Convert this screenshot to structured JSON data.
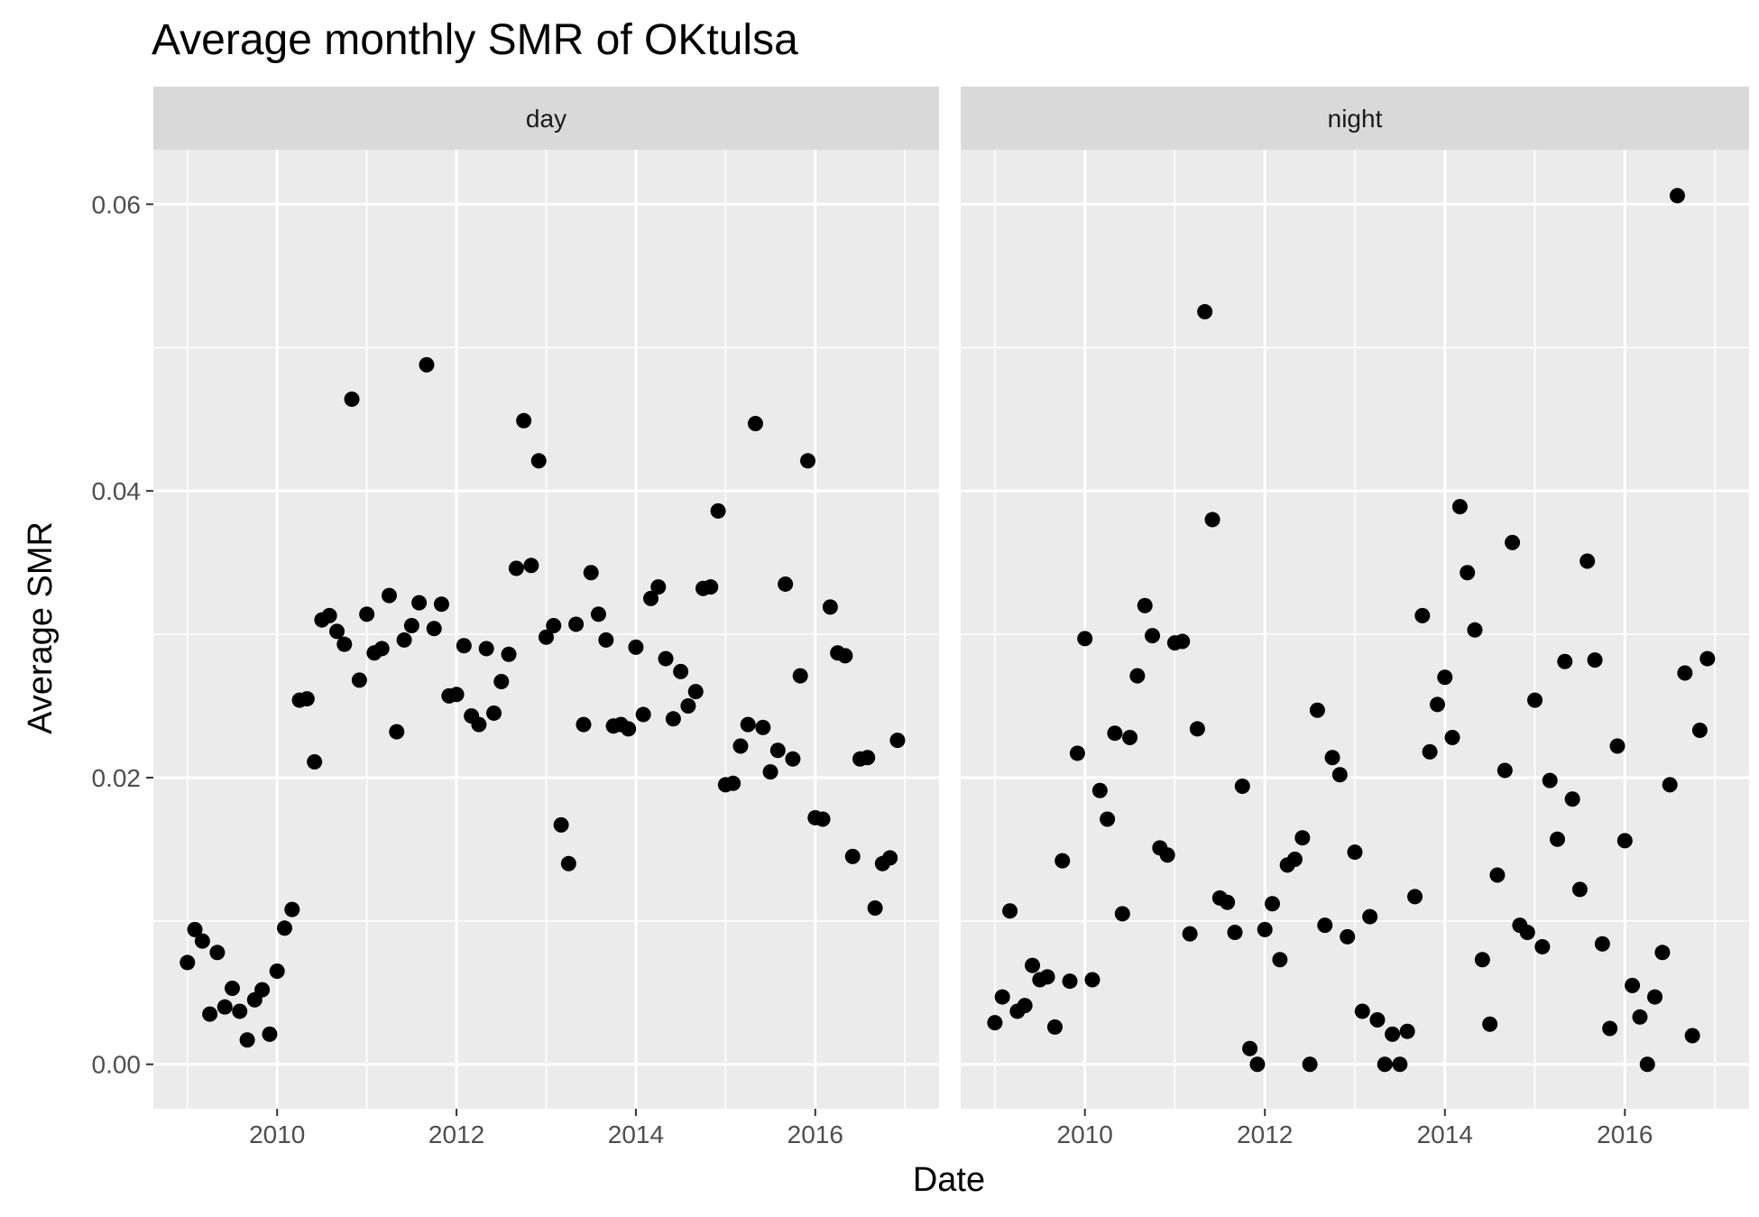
{
  "chart_data": {
    "type": "scatter",
    "title": "Average monthly SMR of OKtulsa",
    "xlabel": "Date",
    "ylabel": "Average SMR",
    "xlim": [
      2008.62,
      2017.38
    ],
    "ylim": [
      -0.0031,
      0.0638
    ],
    "x_ticks": [
      2010,
      2012,
      2014,
      2016
    ],
    "x_tick_labels": [
      "2010",
      "2012",
      "2014",
      "2016"
    ],
    "y_ticks": [
      0.0,
      0.02,
      0.04,
      0.06
    ],
    "y_tick_labels": [
      "0.00",
      "0.02",
      "0.04",
      "0.06"
    ],
    "grid": true,
    "facets": [
      {
        "label": "day",
        "x": [
          2009.0,
          2009.083,
          2009.167,
          2009.25,
          2009.333,
          2009.417,
          2009.5,
          2009.583,
          2009.667,
          2009.75,
          2009.833,
          2009.917,
          2010.0,
          2010.083,
          2010.167,
          2010.25,
          2010.333,
          2010.417,
          2010.5,
          2010.583,
          2010.667,
          2010.75,
          2010.833,
          2010.917,
          2011.0,
          2011.083,
          2011.167,
          2011.25,
          2011.333,
          2011.417,
          2011.5,
          2011.583,
          2011.667,
          2011.75,
          2011.833,
          2011.917,
          2012.0,
          2012.083,
          2012.167,
          2012.25,
          2012.333,
          2012.417,
          2012.5,
          2012.583,
          2012.667,
          2012.75,
          2012.833,
          2012.917,
          2013.0,
          2013.083,
          2013.167,
          2013.25,
          2013.333,
          2013.417,
          2013.5,
          2013.583,
          2013.667,
          2013.75,
          2013.833,
          2013.917,
          2014.0,
          2014.083,
          2014.167,
          2014.25,
          2014.333,
          2014.417,
          2014.5,
          2014.583,
          2014.667,
          2014.75,
          2014.833,
          2014.917,
          2015.0,
          2015.083,
          2015.167,
          2015.25,
          2015.333,
          2015.417,
          2015.5,
          2015.583,
          2015.667,
          2015.75,
          2015.833,
          2015.917,
          2016.0,
          2016.083,
          2016.167,
          2016.25,
          2016.333,
          2016.417,
          2016.5,
          2016.583,
          2016.667,
          2016.75,
          2016.833,
          2016.917
        ],
        "y": [
          0.0071,
          0.0094,
          0.0086,
          0.0035,
          0.0078,
          0.004,
          0.0053,
          0.0037,
          0.0017,
          0.0045,
          0.0052,
          0.0021,
          0.0065,
          0.0095,
          0.0108,
          0.0254,
          0.0255,
          0.0211,
          0.031,
          0.0313,
          0.0302,
          0.0293,
          0.0464,
          0.0268,
          0.0314,
          0.0287,
          0.029,
          0.0327,
          0.0232,
          0.0296,
          0.0306,
          0.0322,
          0.0488,
          0.0304,
          0.0321,
          0.0257,
          0.0258,
          0.0292,
          0.0243,
          0.0237,
          0.029,
          0.0245,
          0.0267,
          0.0286,
          0.0346,
          0.0449,
          0.0348,
          0.0421,
          0.0298,
          0.0306,
          0.0167,
          0.014,
          0.0307,
          0.0237,
          0.0343,
          0.0314,
          0.0296,
          0.0236,
          0.0237,
          0.0234,
          0.0291,
          0.0244,
          0.0325,
          0.0333,
          0.0283,
          0.0241,
          0.0274,
          0.025,
          0.026,
          0.0332,
          0.0333,
          0.0386,
          0.0195,
          0.0196,
          0.0222,
          0.0237,
          0.0447,
          0.0235,
          0.0204,
          0.0219,
          0.0335,
          0.0213,
          0.0271,
          0.0421,
          0.0172,
          0.0171,
          0.0319,
          0.0287,
          0.0285,
          0.0145,
          0.0213,
          0.0214,
          0.0109,
          0.014,
          0.0144,
          0.0226
        ]
      },
      {
        "label": "night",
        "x": [
          2009.0,
          2009.083,
          2009.167,
          2009.25,
          2009.333,
          2009.417,
          2009.5,
          2009.583,
          2009.667,
          2009.75,
          2009.833,
          2009.917,
          2010.0,
          2010.083,
          2010.167,
          2010.25,
          2010.333,
          2010.417,
          2010.5,
          2010.583,
          2010.667,
          2010.75,
          2010.833,
          2010.917,
          2011.0,
          2011.083,
          2011.167,
          2011.25,
          2011.333,
          2011.417,
          2011.5,
          2011.583,
          2011.667,
          2011.75,
          2011.833,
          2011.917,
          2012.0,
          2012.083,
          2012.167,
          2012.25,
          2012.333,
          2012.417,
          2012.5,
          2012.583,
          2012.667,
          2012.75,
          2012.833,
          2012.917,
          2013.0,
          2013.083,
          2013.167,
          2013.25,
          2013.333,
          2013.417,
          2013.5,
          2013.583,
          2013.667,
          2013.75,
          2013.833,
          2013.917,
          2014.0,
          2014.083,
          2014.167,
          2014.25,
          2014.333,
          2014.417,
          2014.5,
          2014.583,
          2014.667,
          2014.75,
          2014.833,
          2014.917,
          2015.0,
          2015.083,
          2015.167,
          2015.25,
          2015.333,
          2015.417,
          2015.5,
          2015.583,
          2015.667,
          2015.75,
          2015.833,
          2015.917,
          2016.0,
          2016.083,
          2016.167,
          2016.25,
          2016.333,
          2016.417,
          2016.5,
          2016.583,
          2016.667,
          2016.75,
          2016.833,
          2016.917
        ],
        "y": [
          0.0029,
          0.0047,
          0.0107,
          0.0037,
          0.0041,
          0.0069,
          0.0059,
          0.0061,
          0.0026,
          0.0142,
          0.0058,
          0.0217,
          0.0297,
          0.0059,
          0.0191,
          0.0171,
          0.0231,
          0.0105,
          0.0228,
          0.0271,
          0.032,
          0.0299,
          0.0151,
          0.0146,
          0.0294,
          0.0295,
          0.0091,
          0.0234,
          0.0525,
          0.038,
          0.0116,
          0.0113,
          0.0092,
          0.0194,
          0.0011,
          0.0,
          0.0094,
          0.0112,
          0.0073,
          0.0139,
          0.0143,
          0.0158,
          0.0,
          0.0247,
          0.0097,
          0.0214,
          0.0202,
          0.0089,
          0.0148,
          0.0037,
          0.0103,
          0.0031,
          0.0,
          0.0021,
          0.0,
          0.0023,
          0.0117,
          0.0313,
          0.0218,
          0.0251,
          0.027,
          0.0228,
          0.0389,
          0.0343,
          0.0303,
          0.0073,
          0.0028,
          0.0132,
          0.0205,
          0.0364,
          0.0097,
          0.0092,
          0.0254,
          0.0082,
          0.0198,
          0.0157,
          0.0281,
          0.0185,
          0.0122,
          0.0351,
          0.0282,
          0.0084,
          0.0025,
          0.0222,
          0.0156,
          0.0055,
          0.0033,
          0.0,
          0.0047,
          0.0078,
          0.0195,
          0.0606,
          0.0273,
          0.002,
          0.0233,
          0.0283
        ]
      }
    ]
  }
}
